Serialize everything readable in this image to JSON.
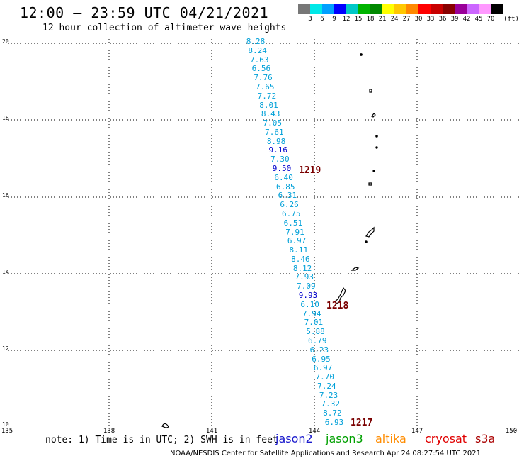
{
  "header": {
    "title": "12:00 – 23:59 UTC 04/21/2021",
    "subtitle": "12 hour collection of altimeter wave heights"
  },
  "legend": {
    "unit_label": "(ft)",
    "labels": [
      "3",
      "6",
      "9",
      "12",
      "15",
      "18",
      "21",
      "24",
      "27",
      "30",
      "33",
      "36",
      "39",
      "42",
      "45",
      "70"
    ],
    "colors": [
      "#777777",
      "#00e8e8",
      "#00a0ff",
      "#0000ff",
      "#00c8c8",
      "#00b400",
      "#008800",
      "#ffff00",
      "#ffc800",
      "#ff8800",
      "#ff0000",
      "#c80000",
      "#880000",
      "#990099",
      "#cc66ff",
      "#ff99ff",
      "#000000"
    ]
  },
  "axes": {
    "lat_labels": [
      "20",
      "18",
      "16",
      "14",
      "12",
      "10"
    ],
    "lon_labels": [
      "135",
      "138",
      "141",
      "144",
      "147",
      "150"
    ]
  },
  "observations": [
    {
      "v": "8.28",
      "c": "#00a0d8"
    },
    {
      "v": "8.24",
      "c": "#00a0d8"
    },
    {
      "v": "7.63",
      "c": "#00a0d8"
    },
    {
      "v": "6.56",
      "c": "#00a0d8"
    },
    {
      "v": "7.76",
      "c": "#00a0d8"
    },
    {
      "v": "7.65",
      "c": "#00a0d8"
    },
    {
      "v": "7.72",
      "c": "#00a0d8"
    },
    {
      "v": "8.01",
      "c": "#00a0d8"
    },
    {
      "v": "8.43",
      "c": "#00a0d8"
    },
    {
      "v": "7.05",
      "c": "#00a0d8"
    },
    {
      "v": "7.61",
      "c": "#00a0d8"
    },
    {
      "v": "8.98",
      "c": "#00a0d8"
    },
    {
      "v": "9.16",
      "c": "#0000cc"
    },
    {
      "v": "7.30",
      "c": "#00a0d8"
    },
    {
      "v": "9.50",
      "c": "#0000cc"
    },
    {
      "v": "6.40",
      "c": "#00a0d8"
    },
    {
      "v": "6.85",
      "c": "#00a0d8"
    },
    {
      "v": "6.31",
      "c": "#00a0d8"
    },
    {
      "v": "6.26",
      "c": "#00a0d8"
    },
    {
      "v": "6.75",
      "c": "#00a0d8"
    },
    {
      "v": "6.51",
      "c": "#00a0d8"
    },
    {
      "v": "7.91",
      "c": "#00a0d8"
    },
    {
      "v": "6.97",
      "c": "#00a0d8"
    },
    {
      "v": "8.11",
      "c": "#00a0d8"
    },
    {
      "v": "8.46",
      "c": "#00a0d8"
    },
    {
      "v": "8.12",
      "c": "#00a0d8"
    },
    {
      "v": "7.93",
      "c": "#00a0d8"
    },
    {
      "v": "7.09",
      "c": "#00a0d8"
    },
    {
      "v": "9.93",
      "c": "#0000cc"
    },
    {
      "v": "6.10",
      "c": "#00a0d8"
    },
    {
      "v": "7.94",
      "c": "#00a0d8"
    },
    {
      "v": "7.01",
      "c": "#00a0d8"
    },
    {
      "v": "5.88",
      "c": "#00a0d8"
    },
    {
      "v": "6.79",
      "c": "#00a0d8"
    },
    {
      "v": "6.23",
      "c": "#00a0d8"
    },
    {
      "v": "6.95",
      "c": "#00a0d8"
    },
    {
      "v": "6.97",
      "c": "#00a0d8"
    },
    {
      "v": "7.70",
      "c": "#00a0d8"
    },
    {
      "v": "7.24",
      "c": "#00a0d8"
    },
    {
      "v": "7.23",
      "c": "#00a0d8"
    },
    {
      "v": "7.32",
      "c": "#00a0d8"
    },
    {
      "v": "8.72",
      "c": "#00a0d8"
    },
    {
      "v": "6.93",
      "c": "#00a0d8"
    }
  ],
  "pass_times": {
    "p1": "1219",
    "p2": "1218",
    "p3": "1217"
  },
  "footer": {
    "note": "note: 1) Time is in UTC; 2) SWH is in feet",
    "missions": [
      {
        "name": "jason2",
        "color": "#1a1acc"
      },
      {
        "name": "jason3",
        "color": "#00a000"
      },
      {
        "name": "altika",
        "color": "#ff8c00"
      },
      {
        "name": "cryosat",
        "color": "#e00000"
      },
      {
        "name": "s3a",
        "color": "#aa0000"
      }
    ],
    "credit": "NOAA/NESDIS Center for Satellite Applications and Research     Apr 24 08:27:54 UTC 2021"
  }
}
